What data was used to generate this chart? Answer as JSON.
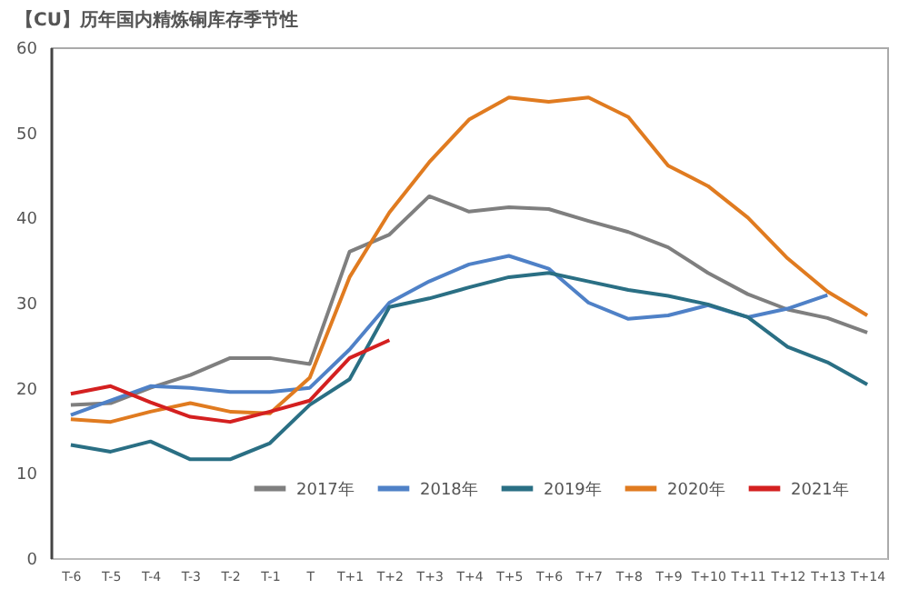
{
  "chart_data": {
    "type": "line",
    "title": "【CU】历年国内精炼铜库存季节性",
    "categories": [
      "T-6",
      "T-5",
      "T-4",
      "T-3",
      "T-2",
      "T-1",
      "T",
      "T+1",
      "T+2",
      "T+3",
      "T+4",
      "T+5",
      "T+6",
      "T+7",
      "T+8",
      "T+9",
      "T+10",
      "T+11",
      "T+12",
      "T+13",
      "T+14"
    ],
    "series": [
      {
        "name": "2017年",
        "color": "#7f7f7f",
        "values": [
          18,
          18.2,
          20,
          21.5,
          23.5,
          23.5,
          22.8,
          36,
          38,
          42.5,
          40.7,
          41.2,
          41,
          39.6,
          38.3,
          36.5,
          33.5,
          31,
          29.2,
          28.2,
          26.5
        ]
      },
      {
        "name": "2018年",
        "color": "#4f81c7",
        "values": [
          16.8,
          18.5,
          20.2,
          20,
          19.5,
          19.5,
          20,
          24.5,
          30,
          32.5,
          34.5,
          35.5,
          34,
          30,
          28.1,
          28.5,
          29.7,
          28.3,
          29.3,
          30.9,
          null
        ]
      },
      {
        "name": "2019年",
        "color": "#2a6f84",
        "values": [
          13.3,
          12.5,
          13.7,
          11.6,
          11.6,
          13.5,
          18,
          21,
          29.5,
          30.5,
          31.8,
          33,
          33.5,
          32.5,
          31.5,
          30.8,
          29.8,
          28.3,
          24.8,
          23,
          20.4
        ]
      },
      {
        "name": "2020年",
        "color": "#e07b20",
        "values": [
          16.3,
          16,
          17.2,
          18.2,
          17.2,
          17,
          21.2,
          33,
          40.6,
          46.5,
          51.5,
          54.1,
          53.6,
          54.1,
          51.8,
          46.1,
          43.7,
          40,
          35.2,
          31.3,
          28.5
        ]
      },
      {
        "name": "2021年",
        "color": "#d42020",
        "values": [
          19.3,
          20.2,
          18.3,
          16.6,
          16,
          17.2,
          18.5,
          23.5,
          25.6,
          null,
          null,
          null,
          null,
          null,
          null,
          null,
          null,
          null,
          null,
          null,
          null
        ]
      }
    ],
    "ylim": [
      0,
      60
    ],
    "yticks": [
      0,
      10,
      20,
      30,
      40,
      50,
      60
    ],
    "grid": false,
    "legend": "bottom",
    "marker": "none",
    "line_style": "solid"
  }
}
